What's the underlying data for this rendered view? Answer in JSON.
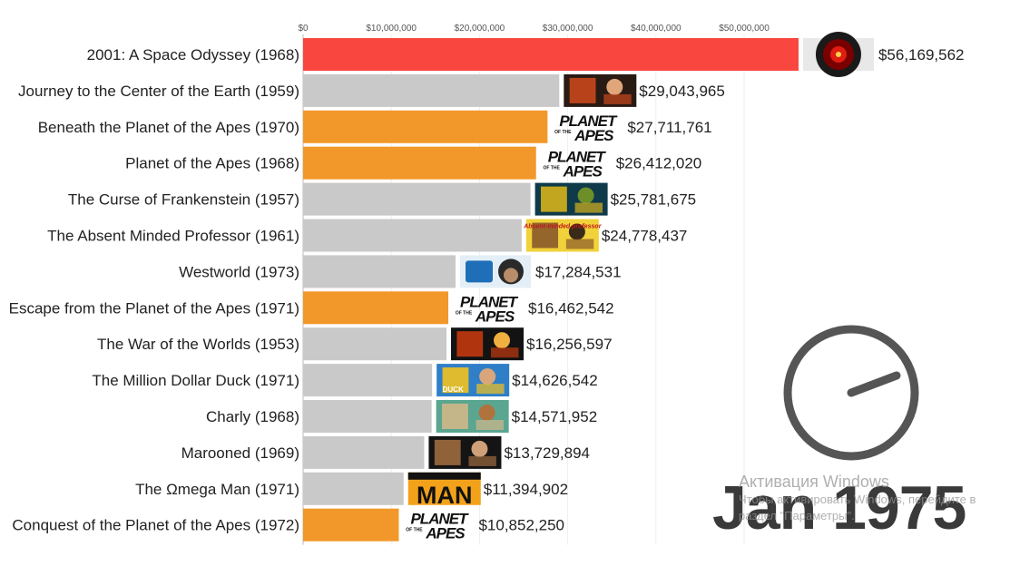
{
  "chart_data": {
    "type": "bar",
    "orientation": "horizontal",
    "categories": [
      "2001: A Space Odyssey (1968)",
      "Journey to the Center of the Earth (1959)",
      "Beneath the Planet of the Apes (1970)",
      "Planet of the Apes (1968)",
      "The Curse of Frankenstein (1957)",
      "The Absent Minded Professor (1961)",
      "Westworld (1973)",
      "Escape from the Planet of the Apes (1971)",
      "The War of the Worlds (1953)",
      "The Million Dollar Duck (1971)",
      "Charly (1968)",
      "Marooned (1969)",
      "The Ωmega Man (1971)",
      "Conquest of the Planet of the Apes (1972)"
    ],
    "values": [
      56169562,
      29043965,
      27711761,
      26412020,
      25781675,
      24778437,
      17284531,
      16462542,
      16256597,
      14626542,
      14571952,
      13729894,
      11394902,
      10852250
    ],
    "value_labels": [
      "$56,169,562",
      "$29,043,965",
      "$27,711,761",
      "$26,412,020",
      "$25,781,675",
      "$24,778,437",
      "$17,284,531",
      "$16,462,542",
      "$16,256,597",
      "$14,626,542",
      "$14,571,952",
      "$13,729,894",
      "$11,394,902",
      "$10,852,250"
    ],
    "bar_colors": [
      "#f9463f",
      "#c9c9c9",
      "#f2982a",
      "#f2982a",
      "#c9c9c9",
      "#c9c9c9",
      "#c9c9c9",
      "#f2982a",
      "#c9c9c9",
      "#c9c9c9",
      "#c9c9c9",
      "#c9c9c9",
      "#c9c9c9",
      "#f2982a"
    ],
    "poster_icons": [
      "hal-eye-icon",
      "poster-journey-icon",
      "planet-of-the-apes-logo-icon",
      "planet-of-the-apes-logo-icon",
      "poster-frankenstein-icon",
      "poster-absent-minded-icon",
      "poster-westworld-icon",
      "planet-of-the-apes-logo-icon",
      "poster-war-worlds-icon",
      "poster-duck-icon",
      "poster-charly-icon",
      "poster-marooned-icon",
      "poster-omega-man-icon",
      "planet-of-the-apes-logo-icon"
    ],
    "x_ticks": [
      0,
      10000000,
      20000000,
      30000000,
      40000000,
      50000000
    ],
    "x_tick_labels": [
      "$0",
      "$10,000,000",
      "$20,000,000",
      "$30,000,000",
      "$40,000,000",
      "$50,000,000"
    ],
    "xlim": [
      0,
      60000000
    ],
    "title": "",
    "xlabel": "",
    "ylabel": "",
    "grid": true
  },
  "date_label": "Jan 1975",
  "poster_text": {
    "planet_line1": "PLANET",
    "planet_line2": "APES",
    "planet_of_the": "OF THE",
    "omega_man": "MAN",
    "duck": "DUCK",
    "absent_minded": "Absent-minded professor"
  },
  "watermark": {
    "title": "Активация Windows",
    "subtitle_line1": "Чтобы активировать Windows, перейдите в",
    "subtitle_line2": "раздел \"Параметры\"."
  },
  "colors": {
    "highlight": "#f9463f",
    "apes": "#f2982a",
    "default": "#c9c9c9",
    "clock": "#555555"
  }
}
